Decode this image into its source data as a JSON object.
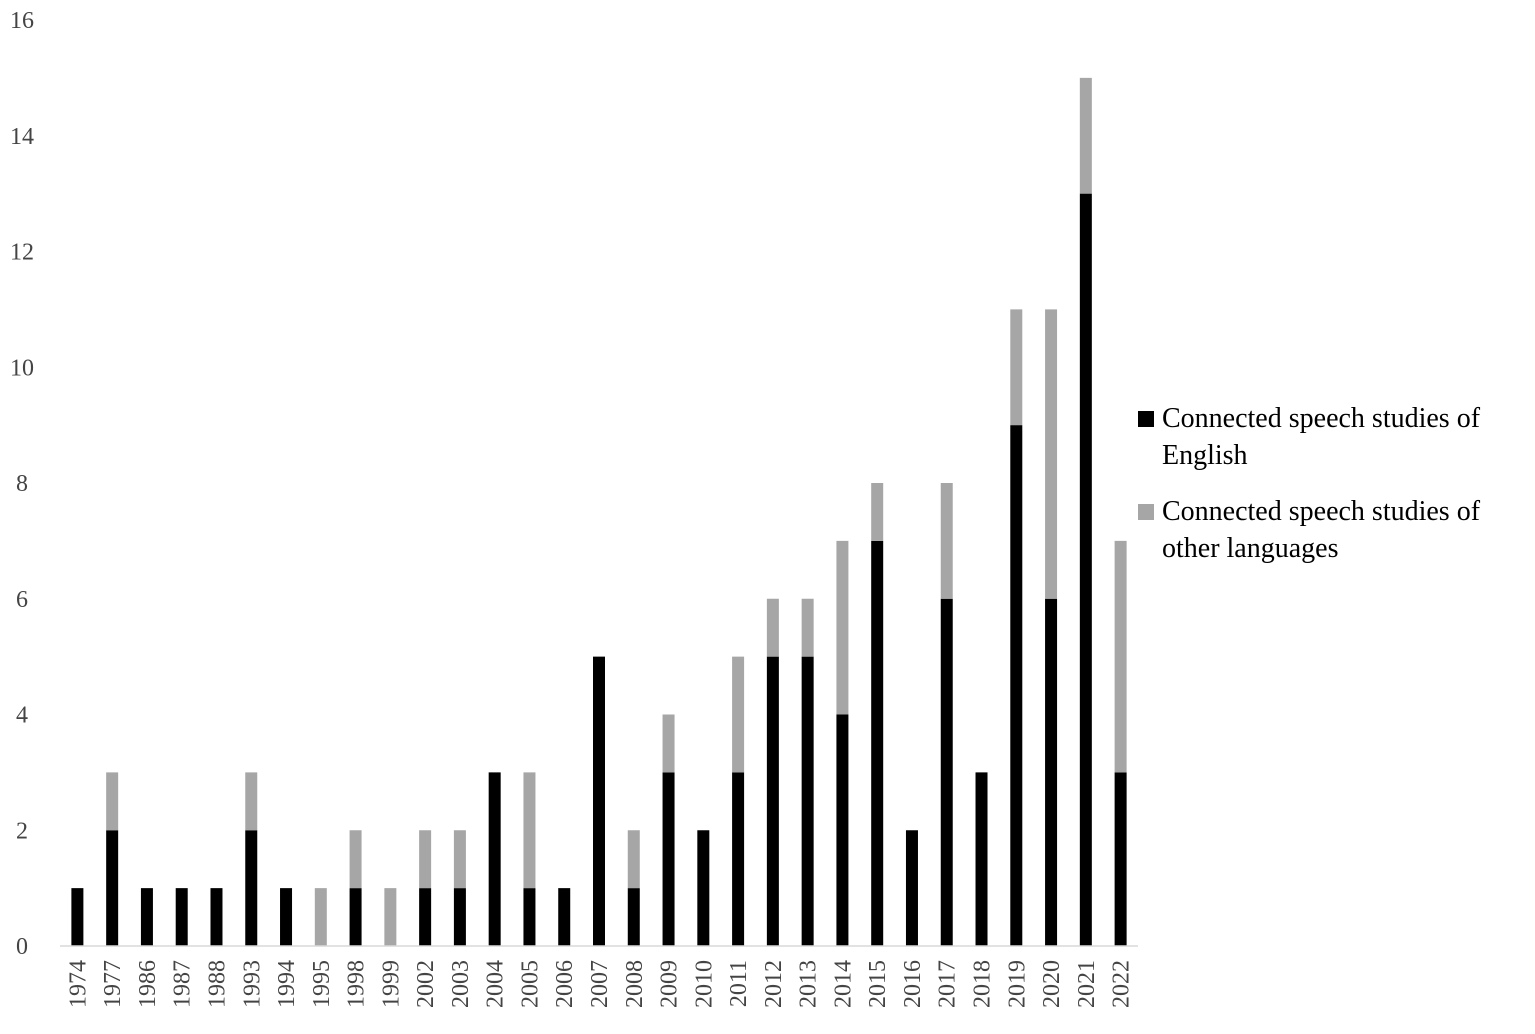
{
  "chart_data": {
    "type": "bar",
    "stacked": true,
    "categories": [
      "1974",
      "1977",
      "1986",
      "1987",
      "1988",
      "1993",
      "1994",
      "1995",
      "1998",
      "1999",
      "2002",
      "2003",
      "2004",
      "2005",
      "2006",
      "2007",
      "2008",
      "2009",
      "2010",
      "2011",
      "2012",
      "2013",
      "2014",
      "2015",
      "2016",
      "2017",
      "2018",
      "2019",
      "2020",
      "2021",
      "2022"
    ],
    "series": [
      {
        "name": "Connected speech studies of English",
        "color": "#000000",
        "values": [
          1,
          2,
          1,
          1,
          1,
          2,
          1,
          0,
          1,
          0,
          1,
          1,
          3,
          1,
          1,
          5,
          1,
          3,
          2,
          3,
          5,
          5,
          4,
          7,
          2,
          6,
          3,
          9,
          6,
          13,
          3
        ]
      },
      {
        "name": "Connected speech studies of other languages",
        "color": "#a6a6a6",
        "values": [
          0,
          1,
          0,
          0,
          0,
          1,
          0,
          1,
          1,
          1,
          1,
          1,
          0,
          2,
          0,
          0,
          1,
          1,
          0,
          2,
          1,
          1,
          3,
          1,
          0,
          2,
          0,
          2,
          5,
          2,
          4
        ]
      }
    ],
    "ylim": [
      0,
      16
    ],
    "yticks": [
      0,
      2,
      4,
      6,
      8,
      10,
      12,
      14,
      16
    ],
    "grid": false,
    "legend": "right"
  }
}
